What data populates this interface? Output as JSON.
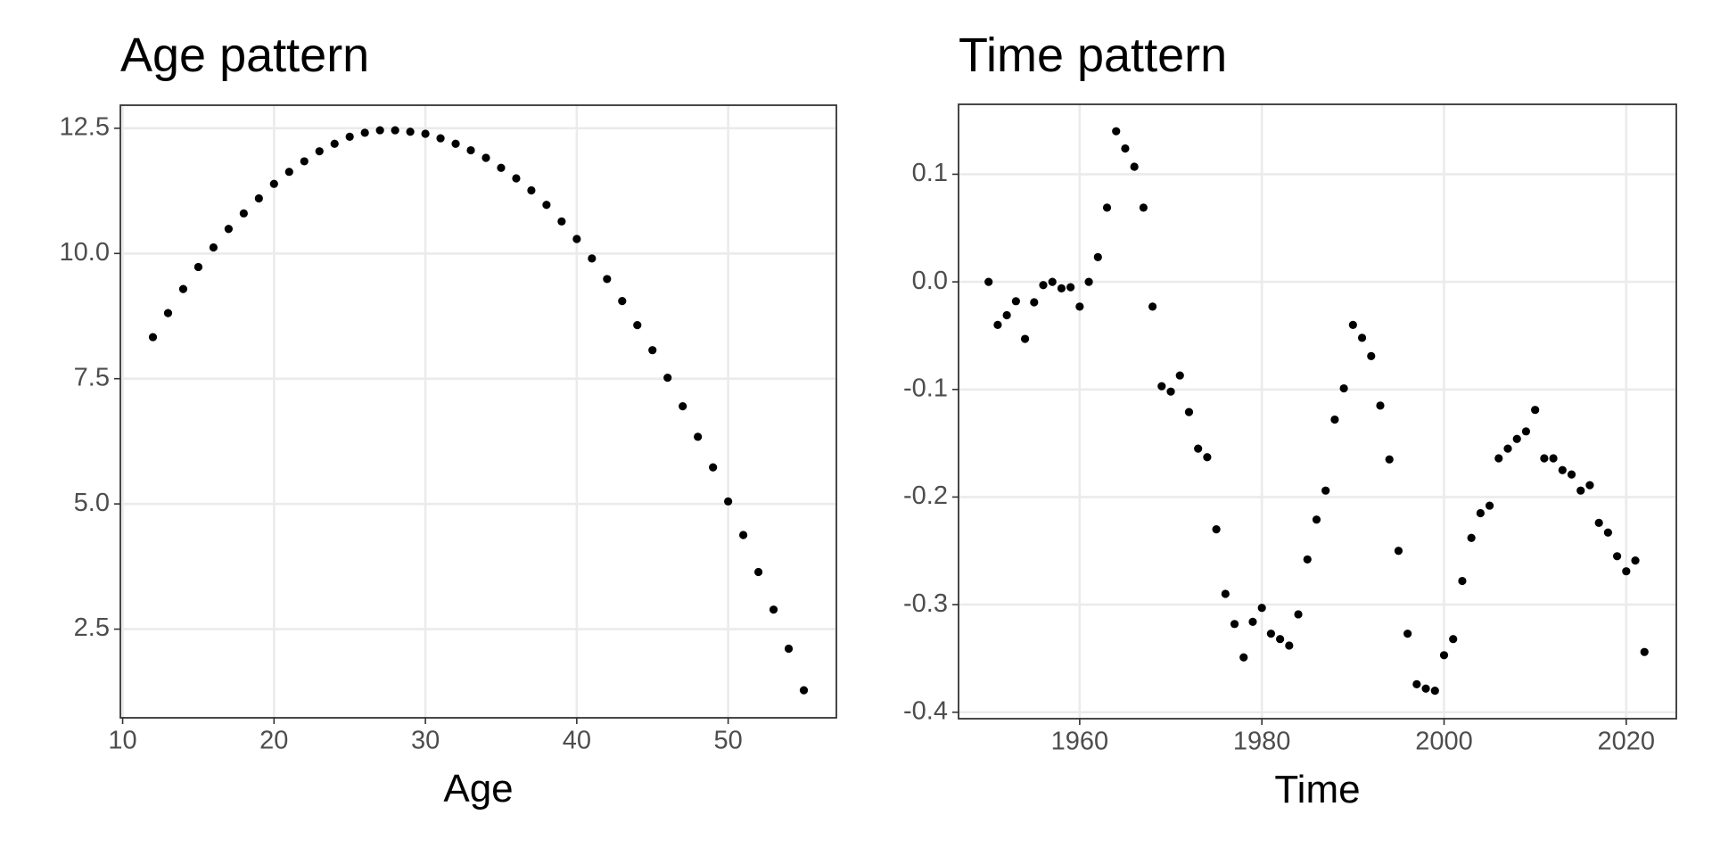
{
  "chart_data": [
    {
      "type": "scatter",
      "title": "Age pattern",
      "x_label": "Age",
      "color": "#000000",
      "grid": true,
      "x": [
        12,
        13,
        14,
        15,
        16,
        17,
        18,
        19,
        20,
        21,
        22,
        23,
        24,
        25,
        26,
        27,
        28,
        29,
        30,
        31,
        32,
        33,
        34,
        35,
        36,
        37,
        38,
        39,
        40,
        41,
        42,
        43,
        44,
        45,
        46,
        47,
        48,
        49,
        50,
        51,
        52,
        53,
        54,
        55
      ],
      "values": [
        8.33,
        8.81,
        9.29,
        9.73,
        10.12,
        10.49,
        10.8,
        11.1,
        11.39,
        11.63,
        11.84,
        12.04,
        12.19,
        12.33,
        12.41,
        12.46,
        12.46,
        12.43,
        12.39,
        12.3,
        12.19,
        12.06,
        11.91,
        11.71,
        11.5,
        11.26,
        10.97,
        10.64,
        10.29,
        9.9,
        9.49,
        9.05,
        8.57,
        8.07,
        7.52,
        6.95,
        6.34,
        5.73,
        5.05,
        4.38,
        3.64,
        2.89,
        2.11,
        1.28
      ],
      "xlim": [
        9.85,
        57.15
      ],
      "ylim": [
        0.73,
        12.96
      ],
      "xticks": [
        10,
        20,
        30,
        40,
        50
      ],
      "yticks": [
        {
          "value": 2.5,
          "label": "2.5"
        },
        {
          "value": 5,
          "label": "5.0"
        },
        {
          "value": 7.5,
          "label": "7.5"
        },
        {
          "value": 10,
          "label": "10.0"
        },
        {
          "value": 12.5,
          "label": "12.5"
        }
      ]
    },
    {
      "type": "scatter",
      "title": "Time pattern",
      "x_label": "Time",
      "color": "#000000",
      "grid": true,
      "x": [
        1950,
        1951,
        1952,
        1953,
        1954,
        1955,
        1956,
        1957,
        1958,
        1959,
        1960,
        1961,
        1962,
        1963,
        1964,
        1965,
        1966,
        1967,
        1968,
        1969,
        1970,
        1971,
        1972,
        1973,
        1974,
        1975,
        1976,
        1977,
        1978,
        1979,
        1980,
        1981,
        1982,
        1983,
        1984,
        1985,
        1986,
        1987,
        1988,
        1989,
        1990,
        1991,
        1992,
        1993,
        1994,
        1995,
        1996,
        1997,
        1998,
        1999,
        2000,
        2001,
        2002,
        2003,
        2004,
        2005,
        2006,
        2007,
        2008,
        2009,
        2010,
        2011,
        2012,
        2013,
        2014,
        2015,
        2016,
        2017,
        2018,
        2019,
        2020,
        2021,
        2022
      ],
      "values": [
        0.0,
        -0.04,
        -0.031,
        -0.018,
        -0.053,
        -0.019,
        -0.003,
        0.0,
        -0.006,
        -0.005,
        -0.023,
        0.0,
        0.023,
        0.069,
        0.14,
        0.124,
        0.107,
        0.069,
        -0.023,
        -0.097,
        -0.102,
        -0.087,
        -0.121,
        -0.155,
        -0.163,
        -0.23,
        -0.29,
        -0.318,
        -0.349,
        -0.316,
        -0.303,
        -0.327,
        -0.332,
        -0.338,
        -0.309,
        -0.258,
        -0.221,
        -0.194,
        -0.128,
        -0.099,
        -0.04,
        -0.052,
        -0.069,
        -0.115,
        -0.165,
        -0.25,
        -0.327,
        -0.374,
        -0.378,
        -0.38,
        -0.347,
        -0.332,
        -0.278,
        -0.238,
        -0.215,
        -0.208,
        -0.164,
        -0.155,
        -0.146,
        -0.139,
        -0.119,
        -0.164,
        -0.164,
        -0.175,
        -0.179,
        -0.194,
        -0.189,
        -0.224,
        -0.233,
        -0.255,
        -0.269,
        -0.259,
        -0.344
      ],
      "xlim": [
        1946.7,
        2025.5
      ],
      "ylim": [
        -0.406,
        0.165
      ],
      "xticks": [
        1960,
        1980,
        2000,
        2020
      ],
      "yticks": [
        -0.4,
        -0.3,
        -0.2,
        -0.1,
        {
          "value": 0,
          "label": "0.0"
        },
        0.1
      ]
    }
  ]
}
